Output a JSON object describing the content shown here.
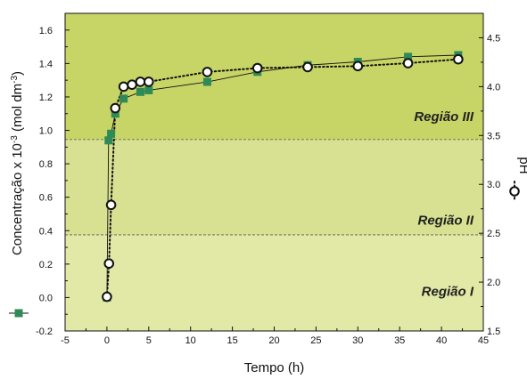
{
  "chart_data": {
    "type": "scatter",
    "xlabel": "Tempo (h)",
    "ylabel_left": {
      "prefix": "Concentração x 10",
      "exponent": "-3",
      "suffix": " (mol dm",
      "suffix_exponent": "-3",
      "close": ")"
    },
    "ylabel_right": "pH",
    "xlim": [
      -5,
      45
    ],
    "ylim_left": [
      -0.2,
      1.7
    ],
    "ylim_right": [
      1.5,
      4.75
    ],
    "x_ticks": [
      -5,
      0,
      5,
      10,
      15,
      20,
      25,
      30,
      35,
      40,
      45
    ],
    "y_ticks_left": [
      "-0.2",
      "0.0",
      "0.2",
      "0.4",
      "0.6",
      "0.8",
      "1.0",
      "1.2",
      "1.4",
      "1.6"
    ],
    "y_ticks_right": [
      "1.5",
      "2.0",
      "2.5",
      "3.0",
      "3.5",
      "4.0",
      "4.5"
    ],
    "regions": [
      {
        "label": "Região I",
        "y_from": -0.2,
        "y_to": 0.375,
        "color": "#e2e8a6"
      },
      {
        "label": "Região II",
        "y_from": 0.375,
        "y_to": 0.945,
        "color": "#d8e192"
      },
      {
        "label": "Região III",
        "y_from": 0.945,
        "y_to": 1.7,
        "color": "#c7d466"
      }
    ],
    "region_boundaries": [
      0.375,
      0.945
    ],
    "series": [
      {
        "axis": "left",
        "marker": "square",
        "color": "#2e8b57",
        "x": [
          0,
          0.2,
          0.5,
          1,
          2,
          4,
          5,
          12,
          18,
          24,
          30,
          36,
          42
        ],
        "y": [
          0.0,
          0.94,
          0.98,
          1.1,
          1.19,
          1.23,
          1.24,
          1.29,
          1.35,
          1.39,
          1.41,
          1.44,
          1.45
        ],
        "line_style": "solid"
      },
      {
        "axis": "right",
        "marker": "circle",
        "color": "#111111",
        "x": [
          0,
          0.25,
          0.5,
          1,
          2,
          3,
          4,
          5,
          12,
          18,
          24,
          30,
          36,
          42
        ],
        "y": [
          1.85,
          2.19,
          2.79,
          3.78,
          4.0,
          4.02,
          4.05,
          4.05,
          4.15,
          4.19,
          4.2,
          4.21,
          4.24,
          4.28
        ],
        "line_style": "dotted"
      }
    ],
    "legend": {
      "marker_square_color": "#2e8b57",
      "marker_circle": true
    }
  }
}
